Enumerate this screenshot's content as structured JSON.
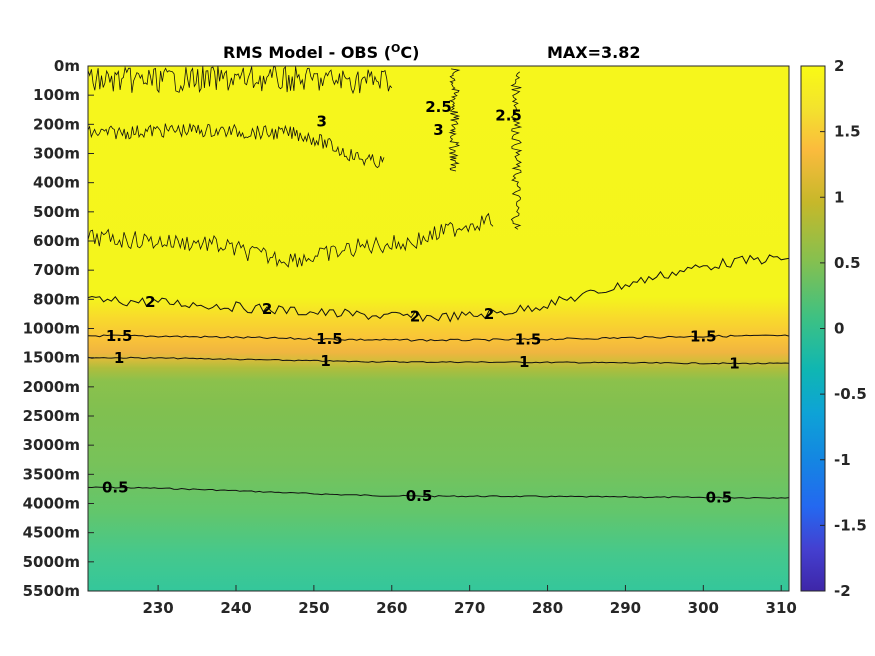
{
  "chart_data": {
    "type": "heatmap",
    "title": "RMS Model - OBS (",
    "title_unit": "O",
    "title_unit_suffix": "C)",
    "max_label": "MAX=3.82",
    "xlabel": "",
    "ylabel": "",
    "xlim": [
      221,
      311
    ],
    "x_ticks": [
      "230",
      "240",
      "250",
      "260",
      "270",
      "280",
      "290",
      "300",
      "310"
    ],
    "x_tick_values": [
      230,
      240,
      250,
      260,
      270,
      280,
      290,
      300,
      310
    ],
    "y_ticks": [
      "0m",
      "100m",
      "200m",
      "300m",
      "400m",
      "500m",
      "600m",
      "700m",
      "800m",
      "1000m",
      "1500m",
      "2000m",
      "2500m",
      "3000m",
      "3500m",
      "4000m",
      "4500m",
      "5000m",
      "5500m"
    ],
    "colorbar": {
      "ticks": [
        "2",
        "1.5",
        "1",
        "0.5",
        "0",
        "-0.5",
        "-1",
        "-1.5",
        "-2"
      ],
      "range": [
        -2,
        2
      ],
      "colormap": "parula"
    },
    "contours": [
      {
        "level": 0.5,
        "label": "0.5",
        "depth_index": [
          14.45,
          14.75,
          14.8
        ],
        "label_positions": [
          [
            224.5,
            0.5
          ],
          [
            263.5,
            0.5
          ],
          [
            302,
            0.5
          ]
        ]
      },
      {
        "level": 1,
        "label": "1",
        "depth_index": [
          10.0,
          10.15,
          10.2
        ],
        "label_positions": [
          [
            225,
            1
          ],
          [
            251.5,
            1
          ],
          [
            277,
            1
          ],
          [
            304,
            1
          ]
        ]
      },
      {
        "level": 1.5,
        "label": "1.5",
        "depth_index": [
          9.25,
          9.4,
          9.25
        ],
        "label_positions": [
          [
            225,
            1.5
          ],
          [
            252,
            1.5
          ],
          [
            277.5,
            1.5
          ],
          [
            300,
            1.5
          ]
        ]
      },
      {
        "level": 2,
        "label": "2",
        "depth_index": [
          8.05,
          8.6,
          6.6
        ],
        "label_positions": [
          [
            229,
            2
          ],
          [
            244,
            2
          ],
          [
            263,
            2
          ],
          [
            272.5,
            2
          ]
        ]
      },
      {
        "level": 2.5,
        "label": "2.5",
        "region": "upper-mid",
        "label_positions": [
          [
            266,
            2.5
          ],
          [
            275,
            2.5
          ]
        ]
      },
      {
        "level": 3,
        "label": "3",
        "region": "upper-left",
        "label_positions": [
          [
            251,
            3
          ],
          [
            266,
            3
          ]
        ]
      }
    ],
    "field_summary": [
      {
        "depth_range": [
          "0m",
          "800m"
        ],
        "rms": "> 2"
      },
      {
        "depth_range": [
          "800m",
          "1000m"
        ],
        "rms": "1.5 - 2"
      },
      {
        "depth_range": [
          "1000m",
          "1500m"
        ],
        "rms": "1 - 1.5"
      },
      {
        "depth_range": [
          "1500m",
          "4000m"
        ],
        "rms": "0.5 - 1"
      },
      {
        "depth_range": [
          "4000m",
          "5500m"
        ],
        "rms": "< 0.5"
      }
    ],
    "grid": false,
    "legend": "colorbar-right"
  }
}
